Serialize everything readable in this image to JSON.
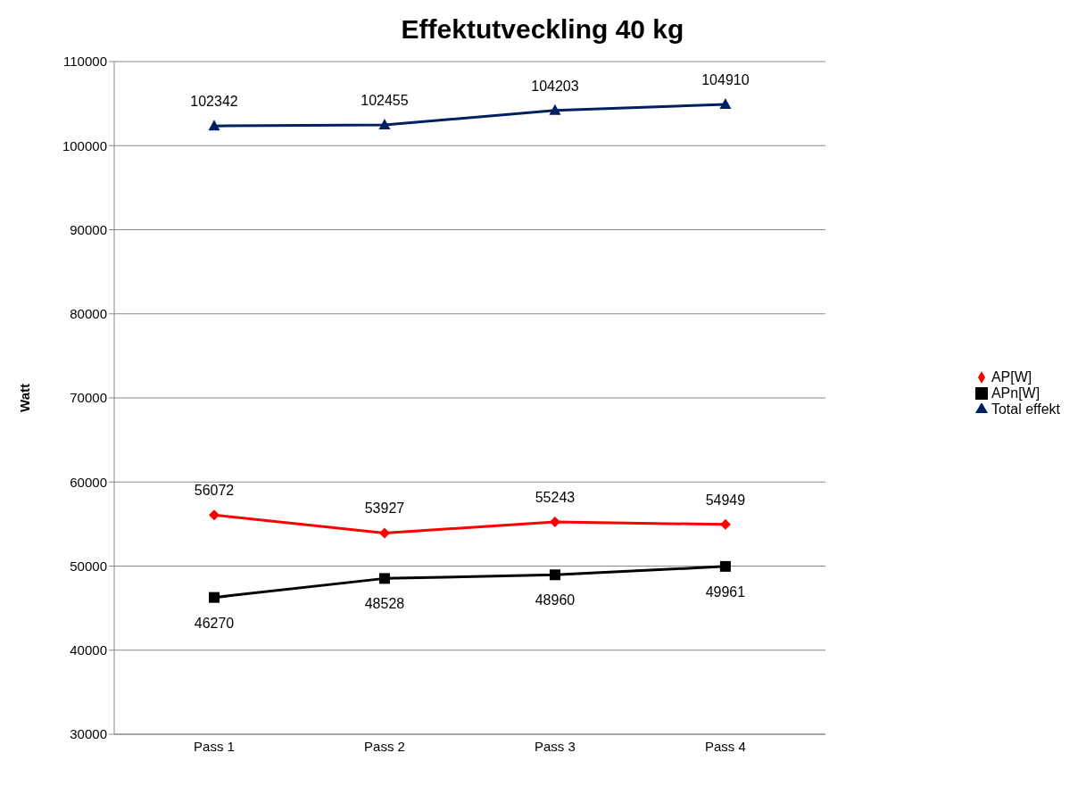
{
  "chart_data": {
    "type": "line",
    "title": "Effektutveckling 40 kg",
    "ylabel": "Watt",
    "categories": [
      "Pass 1",
      "Pass 2",
      "Pass 3",
      "Pass 4"
    ],
    "series": [
      {
        "name": "AP[W]",
        "color": "#ff0000",
        "marker": "diamond",
        "values": [
          56072,
          53927,
          55243,
          54949
        ]
      },
      {
        "name": "APn[W]",
        "color": "#000000",
        "marker": "square",
        "values": [
          46270,
          48528,
          48960,
          49961
        ]
      },
      {
        "name": "Total effekt",
        "color": "#002060",
        "marker": "triangle",
        "values": [
          102342,
          102455,
          104203,
          104910
        ]
      }
    ],
    "ylim": [
      30000,
      110000
    ],
    "yticks": [
      30000,
      40000,
      50000,
      60000,
      70000,
      80000,
      90000,
      100000,
      110000
    ],
    "grid": "y",
    "legend": "right",
    "data_labels": true,
    "line_style": "solid"
  }
}
